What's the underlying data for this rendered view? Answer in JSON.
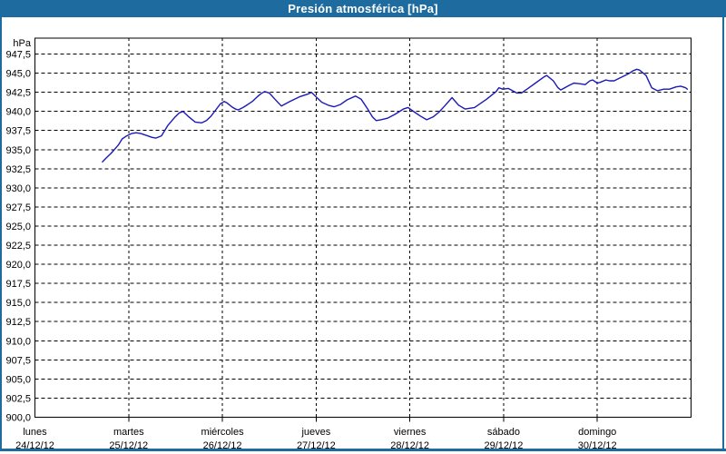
{
  "window": {
    "title": "Presión atmosférica [hPa]"
  },
  "colors": {
    "accent": "#1E6C9F",
    "title_text": "#ffffff",
    "line": "#1a1ab8",
    "grid": "#000000",
    "text": "#000000",
    "background": "#ffffff"
  },
  "chart_data": {
    "type": "line",
    "title": "Presión atmosférica [hPa]",
    "ylabel": "hPa",
    "grid": true,
    "legend": "none",
    "y_axis": {
      "min": 900.0,
      "max_tick": 947.5,
      "step": 2.5,
      "unit": "hPa",
      "decimal_separator": ","
    },
    "ylim": [
      900.0,
      949.6
    ],
    "x_axis": {
      "days_shown": 7
    },
    "categories": [
      {
        "name": "lunes",
        "date": "24/12/12"
      },
      {
        "name": "martes",
        "date": "25/12/12"
      },
      {
        "name": "miércoles",
        "date": "26/12/12"
      },
      {
        "name": "jueves",
        "date": "27/12/12"
      },
      {
        "name": "viernes",
        "date": "28/12/12"
      },
      {
        "name": "sábado",
        "date": "29/12/12"
      },
      {
        "name": "domingo",
        "date": "30/12/12"
      }
    ],
    "series": [
      {
        "name": "Presión atmosférica",
        "unit": "hPa",
        "points": [
          [
            0.72,
            933.4
          ],
          [
            0.76,
            933.9
          ],
          [
            0.81,
            934.5
          ],
          [
            0.84,
            934.9
          ],
          [
            0.89,
            935.6
          ],
          [
            0.93,
            936.4
          ],
          [
            0.98,
            936.8
          ],
          [
            1.03,
            937.1
          ],
          [
            1.08,
            937.2
          ],
          [
            1.13,
            937.1
          ],
          [
            1.18,
            936.9
          ],
          [
            1.25,
            936.6
          ],
          [
            1.29,
            936.5
          ],
          [
            1.35,
            936.8
          ],
          [
            1.42,
            938.2
          ],
          [
            1.49,
            939.2
          ],
          [
            1.54,
            939.8
          ],
          [
            1.58,
            940.0
          ],
          [
            1.64,
            939.3
          ],
          [
            1.71,
            938.6
          ],
          [
            1.78,
            938.5
          ],
          [
            1.83,
            938.8
          ],
          [
            1.88,
            939.4
          ],
          [
            1.93,
            940.2
          ],
          [
            1.98,
            941.0
          ],
          [
            2.02,
            941.3
          ],
          [
            2.05,
            941.1
          ],
          [
            2.1,
            940.6
          ],
          [
            2.14,
            940.3
          ],
          [
            2.17,
            940.2
          ],
          [
            2.22,
            940.5
          ],
          [
            2.27,
            940.9
          ],
          [
            2.32,
            941.3
          ],
          [
            2.37,
            941.9
          ],
          [
            2.41,
            942.3
          ],
          [
            2.45,
            942.6
          ],
          [
            2.5,
            942.4
          ],
          [
            2.56,
            941.6
          ],
          [
            2.63,
            940.7
          ],
          [
            2.72,
            941.3
          ],
          [
            2.82,
            941.9
          ],
          [
            2.92,
            942.3
          ],
          [
            2.95,
            942.5
          ],
          [
            3.0,
            941.9
          ],
          [
            3.06,
            941.2
          ],
          [
            3.13,
            940.8
          ],
          [
            3.19,
            940.6
          ],
          [
            3.26,
            940.9
          ],
          [
            3.33,
            941.5
          ],
          [
            3.42,
            942.0
          ],
          [
            3.48,
            941.6
          ],
          [
            3.55,
            940.3
          ],
          [
            3.6,
            939.3
          ],
          [
            3.64,
            938.8
          ],
          [
            3.69,
            938.9
          ],
          [
            3.76,
            939.1
          ],
          [
            3.84,
            939.6
          ],
          [
            3.93,
            940.3
          ],
          [
            3.98,
            940.5
          ],
          [
            4.05,
            939.9
          ],
          [
            4.11,
            939.4
          ],
          [
            4.18,
            938.9
          ],
          [
            4.25,
            939.3
          ],
          [
            4.31,
            939.9
          ],
          [
            4.37,
            940.7
          ],
          [
            4.45,
            941.8
          ],
          [
            4.52,
            940.8
          ],
          [
            4.59,
            940.3
          ],
          [
            4.69,
            940.5
          ],
          [
            4.82,
            941.6
          ],
          [
            4.92,
            942.6
          ],
          [
            4.95,
            943.1
          ],
          [
            4.99,
            942.9
          ],
          [
            5.05,
            943.0
          ],
          [
            5.14,
            942.4
          ],
          [
            5.19,
            942.4
          ],
          [
            5.26,
            943.0
          ],
          [
            5.34,
            943.7
          ],
          [
            5.43,
            944.5
          ],
          [
            5.46,
            944.7
          ],
          [
            5.53,
            944.0
          ],
          [
            5.58,
            943.1
          ],
          [
            5.61,
            942.8
          ],
          [
            5.7,
            943.4
          ],
          [
            5.75,
            943.7
          ],
          [
            5.82,
            943.6
          ],
          [
            5.87,
            943.5
          ],
          [
            5.92,
            944.0
          ],
          [
            5.95,
            944.1
          ],
          [
            6.0,
            943.7
          ],
          [
            6.03,
            943.8
          ],
          [
            6.09,
            944.1
          ],
          [
            6.13,
            944.0
          ],
          [
            6.18,
            944.0
          ],
          [
            6.23,
            944.3
          ],
          [
            6.33,
            944.9
          ],
          [
            6.38,
            945.3
          ],
          [
            6.42,
            945.5
          ],
          [
            6.45,
            945.4
          ],
          [
            6.52,
            944.7
          ],
          [
            6.55,
            943.9
          ],
          [
            6.58,
            943.1
          ],
          [
            6.64,
            942.7
          ],
          [
            6.71,
            942.9
          ],
          [
            6.77,
            942.9
          ],
          [
            6.84,
            943.2
          ],
          [
            6.89,
            943.3
          ],
          [
            6.94,
            943.1
          ],
          [
            6.96,
            942.9
          ]
        ]
      }
    ]
  }
}
